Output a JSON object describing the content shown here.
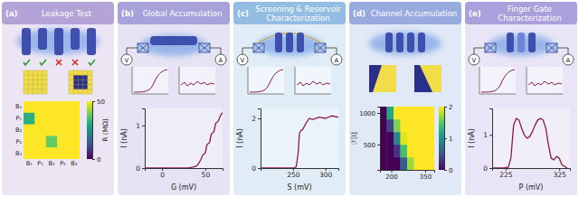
{
  "panels": [
    {
      "label": "(a)",
      "title": "Leakage Test"
    },
    {
      "label": "(b)",
      "title": "Global Accumulation"
    },
    {
      "label": "(c)",
      "title": "Screening & Reservoir Characterization"
    },
    {
      "label": "(d)",
      "title": "Channel Accumulation"
    },
    {
      "label": "(e)",
      "title": "Finger Gate Characterization"
    }
  ],
  "schematic_labels": {
    "voltage": "V",
    "current": "A"
  },
  "chart_data": [
    {
      "type": "heatmap",
      "x": [
        "B₁",
        "P₁",
        "B₂",
        "P₂",
        "B₃"
      ],
      "y": [
        "B₁",
        "P₁",
        "B₂",
        "P₂",
        "B₃"
      ],
      "values": [
        [
          50,
          50,
          50,
          50,
          50
        ],
        [
          32,
          50,
          50,
          50,
          50
        ],
        [
          50,
          50,
          50,
          50,
          50
        ],
        [
          50,
          50,
          38,
          50,
          50
        ],
        [
          50,
          50,
          50,
          50,
          50
        ]
      ],
      "colorbar": {
        "label": "R (MΩ)",
        "range": [
          0,
          50
        ],
        "ticks": [
          0,
          50
        ]
      }
    },
    {
      "type": "line",
      "x_label": "G (mV)",
      "y_label": "I (nA)",
      "color": "#8b1a4a",
      "x": [
        -20,
        -10,
        0,
        10,
        20,
        30,
        35,
        40,
        42,
        45,
        47,
        50,
        52,
        55,
        57,
        60,
        62,
        65,
        68,
        70
      ],
      "values": [
        0,
        0,
        0,
        0,
        0,
        0,
        0.02,
        0.05,
        0.1,
        0.2,
        0.3,
        0.35,
        0.55,
        0.6,
        0.8,
        0.85,
        1.05,
        1.1,
        1.25,
        1.3
      ],
      "xlim": [
        -20,
        70
      ],
      "xticks": [
        0,
        50
      ],
      "ylim": [
        0,
        1.4
      ],
      "yticks": [
        0,
        1
      ]
    },
    {
      "type": "line",
      "x_label": "S (mV)",
      "y_label": "I (nA)",
      "color": "#8b1a4a",
      "x": [
        200,
        220,
        240,
        250,
        255,
        258,
        260,
        262,
        265,
        270,
        275,
        280,
        290,
        300,
        310,
        320
      ],
      "values": [
        0,
        0,
        0,
        0,
        0.05,
        0.6,
        1.4,
        1.5,
        1.55,
        1.8,
        2.0,
        1.95,
        2.05,
        2.0,
        2.1,
        2.05
      ],
      "xlim": [
        200,
        320
      ],
      "xticks": [
        250,
        300
      ],
      "ylim": [
        0,
        2.4
      ],
      "yticks": [
        0,
        2
      ]
    },
    {
      "type": "heatmap",
      "x": [
        165,
        195,
        225,
        255,
        285,
        315,
        345,
        375
      ],
      "y": [
        200,
        400,
        600,
        800,
        1000
      ],
      "values": [
        [
          0,
          0,
          0,
          0.6,
          1.7,
          2,
          2,
          2
        ],
        [
          0,
          0,
          0.3,
          1.4,
          2,
          2,
          2,
          2
        ],
        [
          0,
          0,
          0.9,
          1.9,
          2,
          2,
          2,
          2
        ],
        [
          0,
          0.4,
          1.6,
          2,
          2,
          2,
          2,
          2
        ],
        [
          0,
          1.2,
          2,
          2,
          2,
          2,
          2,
          2
        ]
      ],
      "xlim": [
        150,
        390
      ],
      "xticks": [
        200,
        350
      ],
      "ylim": [
        100,
        1100
      ],
      "yticks": [
        500,
        1000
      ],
      "colorbar": {
        "label": "ℱ[I]",
        "range": [
          0,
          2
        ],
        "ticks": [
          0,
          1,
          2
        ]
      }
    },
    {
      "type": "line",
      "x_label": "P (mV)",
      "y_label": "I (nA)",
      "color": "#8b1a4a",
      "x": [
        200,
        220,
        230,
        235,
        240,
        245,
        250,
        255,
        260,
        265,
        270,
        275,
        280,
        285,
        290,
        295,
        300,
        305,
        310,
        315,
        320,
        325,
        330,
        340
      ],
      "values": [
        0,
        0,
        0.02,
        0.3,
        1.3,
        1.5,
        1.45,
        1.2,
        1.0,
        0.9,
        0.95,
        1.1,
        1.3,
        1.45,
        1.5,
        1.45,
        1.2,
        0.7,
        0.3,
        0.25,
        0.35,
        0.3,
        0.1,
        0
      ],
      "xlim": [
        200,
        345
      ],
      "xticks": [
        225,
        325
      ],
      "ylim": [
        0,
        1.8
      ],
      "yticks": [
        0,
        1
      ]
    }
  ]
}
